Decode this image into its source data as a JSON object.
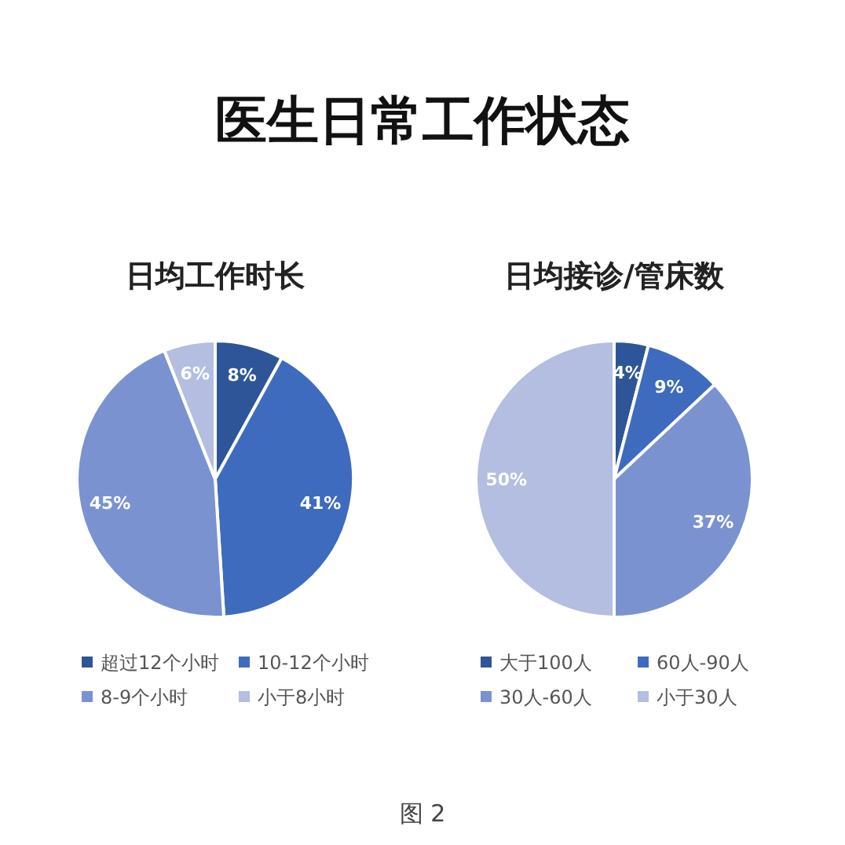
{
  "chart_data": [
    {
      "type": "pie",
      "title": "日均工作时长",
      "categories": [
        "超过12个小时",
        "10-12个小时",
        "8-9个小时",
        "小于8小时"
      ],
      "values": [
        8,
        41,
        45,
        6
      ],
      "colors": [
        "#2e5597",
        "#3e6bbd",
        "#7a92d0",
        "#b3bee0"
      ],
      "value_labels": [
        "8%",
        "41%",
        "45%",
        "6%"
      ],
      "legend": "bottom",
      "annotations": [
        "医生日常工作状态",
        "图 2"
      ]
    },
    {
      "type": "pie",
      "title": "日均接诊/管床数",
      "categories": [
        "大于100人",
        "60人-90人",
        "30人-60人",
        "小于30人"
      ],
      "values": [
        4,
        9,
        37,
        50
      ],
      "colors": [
        "#2e5597",
        "#3e6bbd",
        "#7a92d0",
        "#b3bee0"
      ],
      "value_labels": [
        "4%",
        "9%",
        "37%",
        "50%"
      ],
      "legend": "bottom"
    }
  ]
}
